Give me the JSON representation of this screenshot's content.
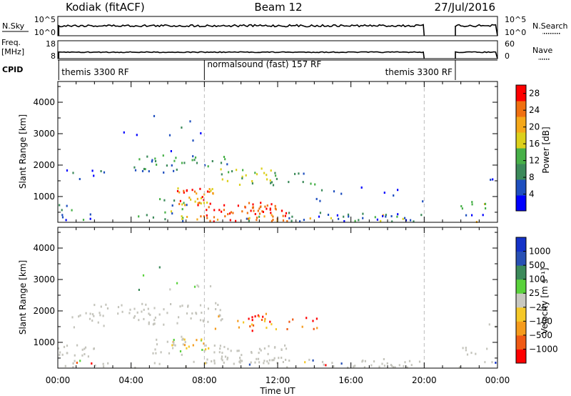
{
  "header": {
    "station": "Kodiak (fitACF)",
    "beam": "Beam 12",
    "date": "27/Jul/2016"
  },
  "status_panels": {
    "nsky": {
      "label": "N.Sky",
      "ticks": [
        "10^5",
        "10^0"
      ]
    },
    "nsearch": {
      "label": "N.Search",
      "ticks": [
        "10^5",
        "10^0"
      ]
    },
    "freq": {
      "label": "Freq.",
      "unit": "[MHz]",
      "ticks": [
        "18",
        "8"
      ]
    },
    "nave": {
      "label": "Nave",
      "ticks": [
        "60",
        "0"
      ]
    },
    "cpid": {
      "label": "CPID"
    }
  },
  "programs": [
    {
      "label": "themis 3300 RF",
      "start_hour": 0.05,
      "end_hour": 8.0
    },
    {
      "label": "normalsound (fast) 157 RF",
      "start_hour": 8.0,
      "end_hour": 21.7
    },
    {
      "label": "themis 3300 RF",
      "start_hour": 21.7,
      "end_hour": 24.0
    }
  ],
  "chart_data": [
    {
      "type": "heatmap",
      "name": "power",
      "ylabel": "Slant Range [km]",
      "xlabel": "Time UT",
      "x_ticks": [
        "00:00",
        "04:00",
        "08:00",
        "12:00",
        "16:00",
        "20:00",
        "00:00"
      ],
      "y_ticks": [
        1000,
        2000,
        3000,
        4000
      ],
      "xlim_hours": [
        0,
        24
      ],
      "ylim_km": [
        180,
        4660
      ],
      "colorbar": {
        "label": "Power [dB]",
        "ticks": [
          4,
          8,
          12,
          16,
          20,
          24,
          28
        ],
        "range": [
          0,
          30
        ]
      },
      "dashed_times_hours": [
        8,
        20
      ],
      "data_gap_hours": [
        20.0,
        21.7
      ]
    },
    {
      "type": "heatmap",
      "name": "velocity",
      "ylabel": "Slant Range [km]",
      "xlabel": "Time UT",
      "x_ticks": [
        "00:00",
        "04:00",
        "08:00",
        "12:00",
        "16:00",
        "20:00",
        "00:00"
      ],
      "y_ticks": [
        1000,
        2000,
        3000,
        4000
      ],
      "xlim_hours": [
        0,
        24
      ],
      "ylim_km": [
        180,
        4660
      ],
      "colorbar": {
        "label": "Velocity [m s⁻¹]",
        "ticks": [
          "1000",
          "500",
          "100",
          "25",
          "−25",
          "−100",
          "−500",
          "−1000"
        ]
      },
      "dashed_times_hours": [
        8,
        20
      ],
      "data_gap_hours": [
        20.0,
        21.7
      ]
    }
  ],
  "colors": {
    "power_scale": [
      "#0000ff",
      "#1f4fbf",
      "#3c8a5a",
      "#47b048",
      "#dcd01c",
      "#f5a81a",
      "#f07010",
      "#ff0000"
    ],
    "velocity_scale": [
      "#ff0000",
      "#f05a14",
      "#f59b1c",
      "#f5c828",
      "#c8c8c0",
      "#5ad23c",
      "#3c8a5a",
      "#2850b4",
      "#1432c8"
    ],
    "ground_scatter": "#c4c4bc"
  }
}
